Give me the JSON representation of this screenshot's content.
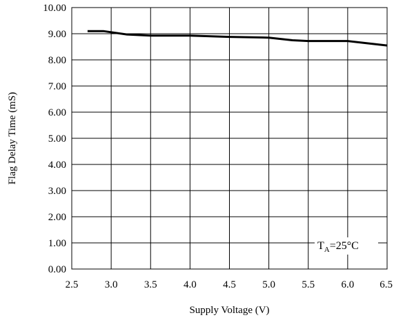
{
  "chart_data": {
    "type": "line",
    "title": "",
    "xlabel": "Supply Voltage (V)",
    "ylabel": "Flag Delay Time  (mS)",
    "xlim": [
      2.5,
      6.5
    ],
    "ylim": [
      0,
      10
    ],
    "x_ticks": [
      "2.5",
      "3.0",
      "3.5",
      "4.0",
      "4.5",
      "5.0",
      "5.5",
      "6.0",
      "6.5"
    ],
    "y_ticks": [
      "0.00",
      "1.00",
      "2.00",
      "3.00",
      "4.00",
      "5.00",
      "6.00",
      "7.00",
      "8.00",
      "9.00",
      "10.00"
    ],
    "grid": true,
    "annotation": {
      "main": "T",
      "sub": "A",
      "rest": "=25°C"
    },
    "series": [
      {
        "x": [
          2.7,
          2.9,
          3.2,
          3.5,
          4.0,
          4.5,
          5.0,
          5.3,
          5.5,
          6.0,
          6.2,
          6.5
        ],
        "y": [
          9.1,
          9.1,
          8.97,
          8.93,
          8.93,
          8.88,
          8.85,
          8.75,
          8.72,
          8.72,
          8.65,
          8.55
        ],
        "color": "#000000"
      }
    ]
  }
}
